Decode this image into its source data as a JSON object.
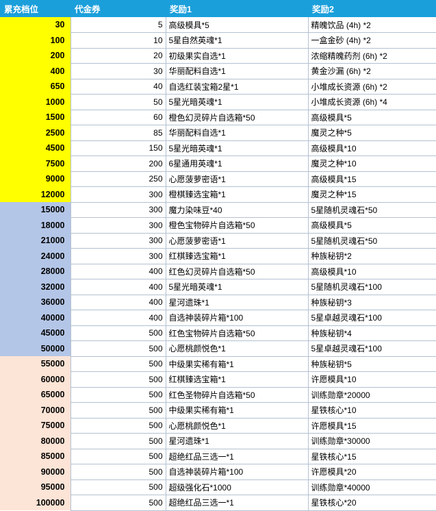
{
  "colors": {
    "header_bg": "#1B9FDB",
    "header_text": "#FFFFFF",
    "tier_yellow": "#FFFF00",
    "tier_blue": "#B4C6E7",
    "tier_peach": "#FCE4D6",
    "grid_line": "#B3C1D1",
    "text": "#000000"
  },
  "table": {
    "columns": [
      {
        "label": "累充档位"
      },
      {
        "label": "代金券"
      },
      {
        "label": "奖励1"
      },
      {
        "label": "奖励2"
      }
    ],
    "rows": [
      {
        "group": "yellow",
        "cells": [
          "30",
          "5",
          "高级模具*5",
          "精魄饮品 (4h) *2"
        ]
      },
      {
        "group": "yellow",
        "cells": [
          "100",
          "10",
          "5星自然英魂*1",
          "一盒金砂 (4h) *2"
        ]
      },
      {
        "group": "yellow",
        "cells": [
          "200",
          "20",
          "初级果实自选*1",
          "浓缩精魄药剂 (6h) *2"
        ]
      },
      {
        "group": "yellow",
        "cells": [
          "400",
          "30",
          "华丽配料自选*1",
          "黄金沙漏 (6h) *2"
        ]
      },
      {
        "group": "yellow",
        "cells": [
          "650",
          "40",
          "自选红装宝箱2星*1",
          "小堆成长资源 (6h) *2"
        ]
      },
      {
        "group": "yellow",
        "cells": [
          "1000",
          "50",
          "5星光暗英魂*1",
          "小堆成长资源 (6h) *4"
        ]
      },
      {
        "group": "yellow",
        "cells": [
          "1500",
          "60",
          "橙色幻灵碎片自选箱*50",
          "高级模具*5"
        ]
      },
      {
        "group": "yellow",
        "cells": [
          "2500",
          "85",
          "华丽配料自选*1",
          "魔灵之种*5"
        ]
      },
      {
        "group": "yellow",
        "cells": [
          "4500",
          "150",
          "5星光暗英魂*1",
          "高级模具*10"
        ]
      },
      {
        "group": "yellow",
        "cells": [
          "7500",
          "200",
          "6星通用英魂*1",
          "魔灵之种*10"
        ]
      },
      {
        "group": "yellow",
        "cells": [
          "9000",
          "250",
          "心愿菠萝密语*1",
          "高级模具*15"
        ]
      },
      {
        "group": "yellow",
        "cells": [
          "12000",
          "300",
          "橙棋臻选宝箱*1",
          "魔灵之种*15"
        ]
      },
      {
        "group": "blue",
        "cells": [
          "15000",
          "300",
          "魔力染味豆*40",
          "5星随机灵魂石*50"
        ]
      },
      {
        "group": "blue",
        "cells": [
          "18000",
          "300",
          "橙色宝物碎片自选箱*50",
          "高级模具*5"
        ]
      },
      {
        "group": "blue",
        "cells": [
          "21000",
          "300",
          "心愿菠萝密语*1",
          "5星随机灵魂石*50"
        ]
      },
      {
        "group": "blue",
        "cells": [
          "24000",
          "300",
          "红棋臻选宝箱*1",
          "种族秘钥*2"
        ]
      },
      {
        "group": "blue",
        "cells": [
          "28000",
          "400",
          "红色幻灵碎片自选箱*50",
          "高级模具*10"
        ]
      },
      {
        "group": "blue",
        "cells": [
          "32000",
          "400",
          "5星光暗英魂*1",
          "5星随机灵魂石*100"
        ]
      },
      {
        "group": "blue",
        "cells": [
          "36000",
          "400",
          "星河遗珠*1",
          "种族秘钥*3"
        ]
      },
      {
        "group": "blue",
        "cells": [
          "40000",
          "400",
          "自选神装碎片箱*100",
          "5星卓越灵魂石*100"
        ]
      },
      {
        "group": "blue",
        "cells": [
          "45000",
          "500",
          "红色宝物碎片自选箱*50",
          "种族秘钥*4"
        ]
      },
      {
        "group": "blue",
        "cells": [
          "50000",
          "500",
          "心愿桃颜悦色*1",
          "5星卓越灵魂石*100"
        ]
      },
      {
        "group": "peach",
        "cells": [
          "55000",
          "500",
          "中级果实稀有箱*1",
          "种族秘钥*5"
        ]
      },
      {
        "group": "peach",
        "cells": [
          "60000",
          "500",
          "红棋臻选宝箱*1",
          "许愿模具*10"
        ]
      },
      {
        "group": "peach",
        "cells": [
          "65000",
          "500",
          "红色圣物碎片自选箱*50",
          "训练勋章*20000"
        ]
      },
      {
        "group": "peach",
        "cells": [
          "70000",
          "500",
          "中级果实稀有箱*1",
          "星铁核心*10"
        ]
      },
      {
        "group": "peach",
        "cells": [
          "75000",
          "500",
          "心愿桃颜悦色*1",
          "许愿模具*15"
        ]
      },
      {
        "group": "peach",
        "cells": [
          "80000",
          "500",
          "星河遗珠*1",
          "训练勋章*30000"
        ]
      },
      {
        "group": "peach",
        "cells": [
          "85000",
          "500",
          "超绝红品三选一*1",
          "星铁核心*15"
        ]
      },
      {
        "group": "peach",
        "cells": [
          "90000",
          "500",
          "自选神装碎片箱*100",
          "许愿模具*20"
        ]
      },
      {
        "group": "peach",
        "cells": [
          "95000",
          "500",
          "超级强化石*1000",
          "训练勋章*40000"
        ]
      },
      {
        "group": "peach",
        "cells": [
          "100000",
          "500",
          "超绝红品三选一*1",
          "星铁核心*20"
        ]
      }
    ]
  }
}
